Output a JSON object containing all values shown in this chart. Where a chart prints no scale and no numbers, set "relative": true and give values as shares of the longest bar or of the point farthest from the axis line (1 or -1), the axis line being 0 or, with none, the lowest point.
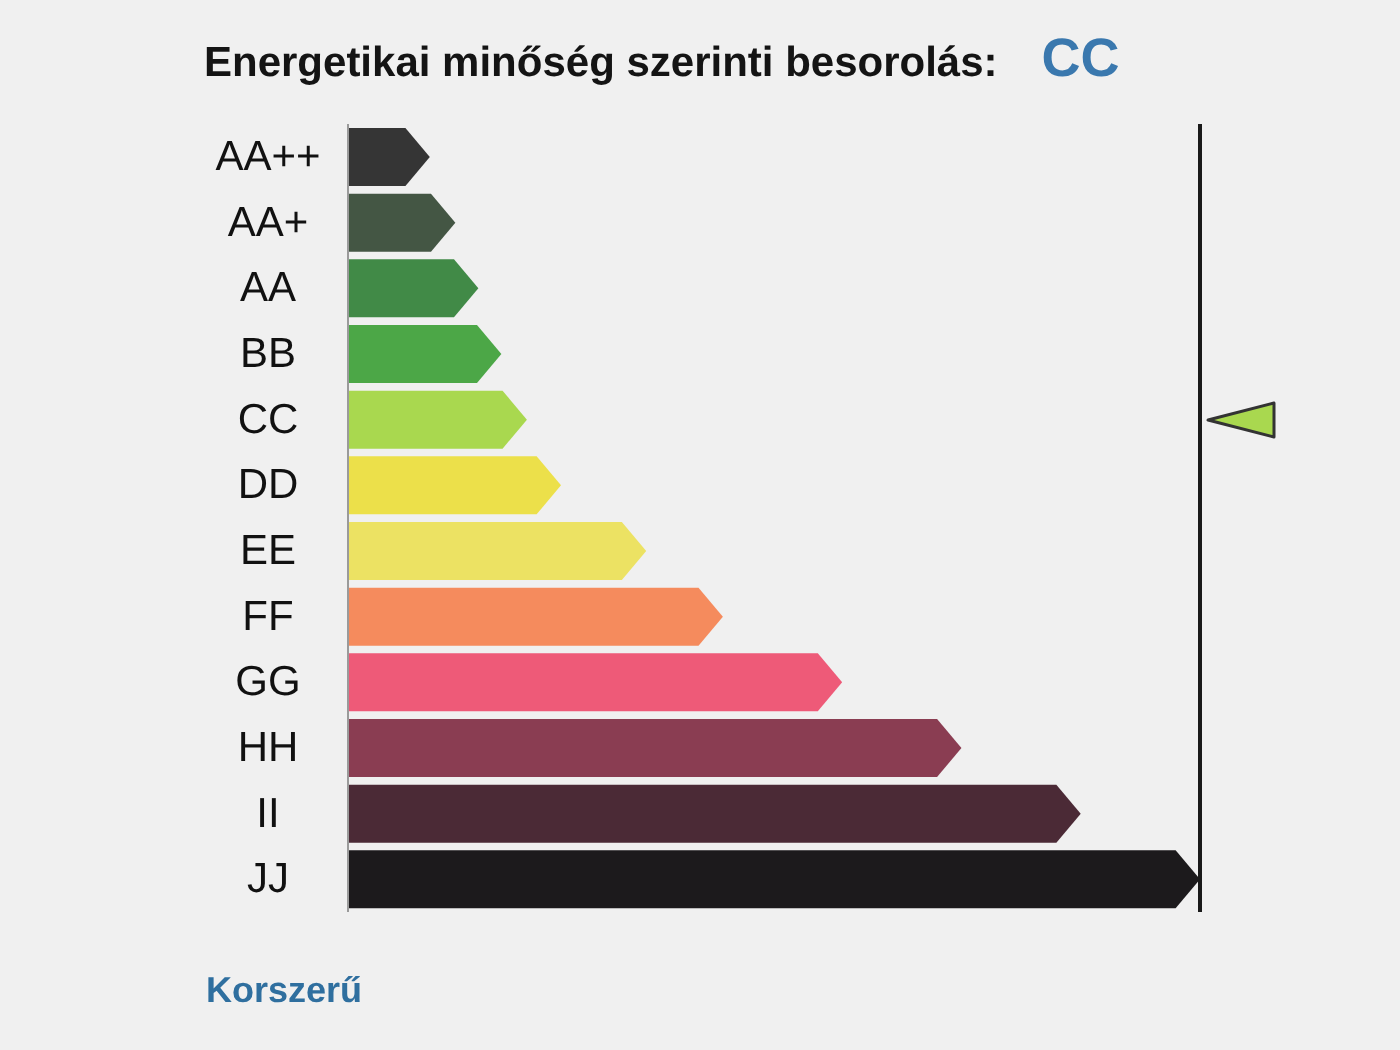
{
  "chart_data": {
    "type": "bar",
    "orientation": "horizontal",
    "relative": true,
    "title": "Energetikai minőség szerinti besorolás:",
    "categories": [
      "AA++",
      "AA+",
      "AA",
      "BB",
      "CC",
      "DD",
      "EE",
      "FF",
      "GG",
      "HH",
      "II",
      "JJ"
    ],
    "values": [
      0.096,
      0.126,
      0.153,
      0.18,
      0.21,
      0.25,
      0.35,
      0.44,
      0.58,
      0.72,
      0.86,
      1
    ],
    "colors": [
      "#353535",
      "#445644",
      "#418a47",
      "#4ca747",
      "#a9d84f",
      "#ece04a",
      "#ece263",
      "#f58b5d",
      "#ee5a78",
      "#8a3d52",
      "#4b2a36",
      "#1c1a1c"
    ],
    "needle": "CC",
    "annotations": [
      "Korszerű"
    ]
  }
}
